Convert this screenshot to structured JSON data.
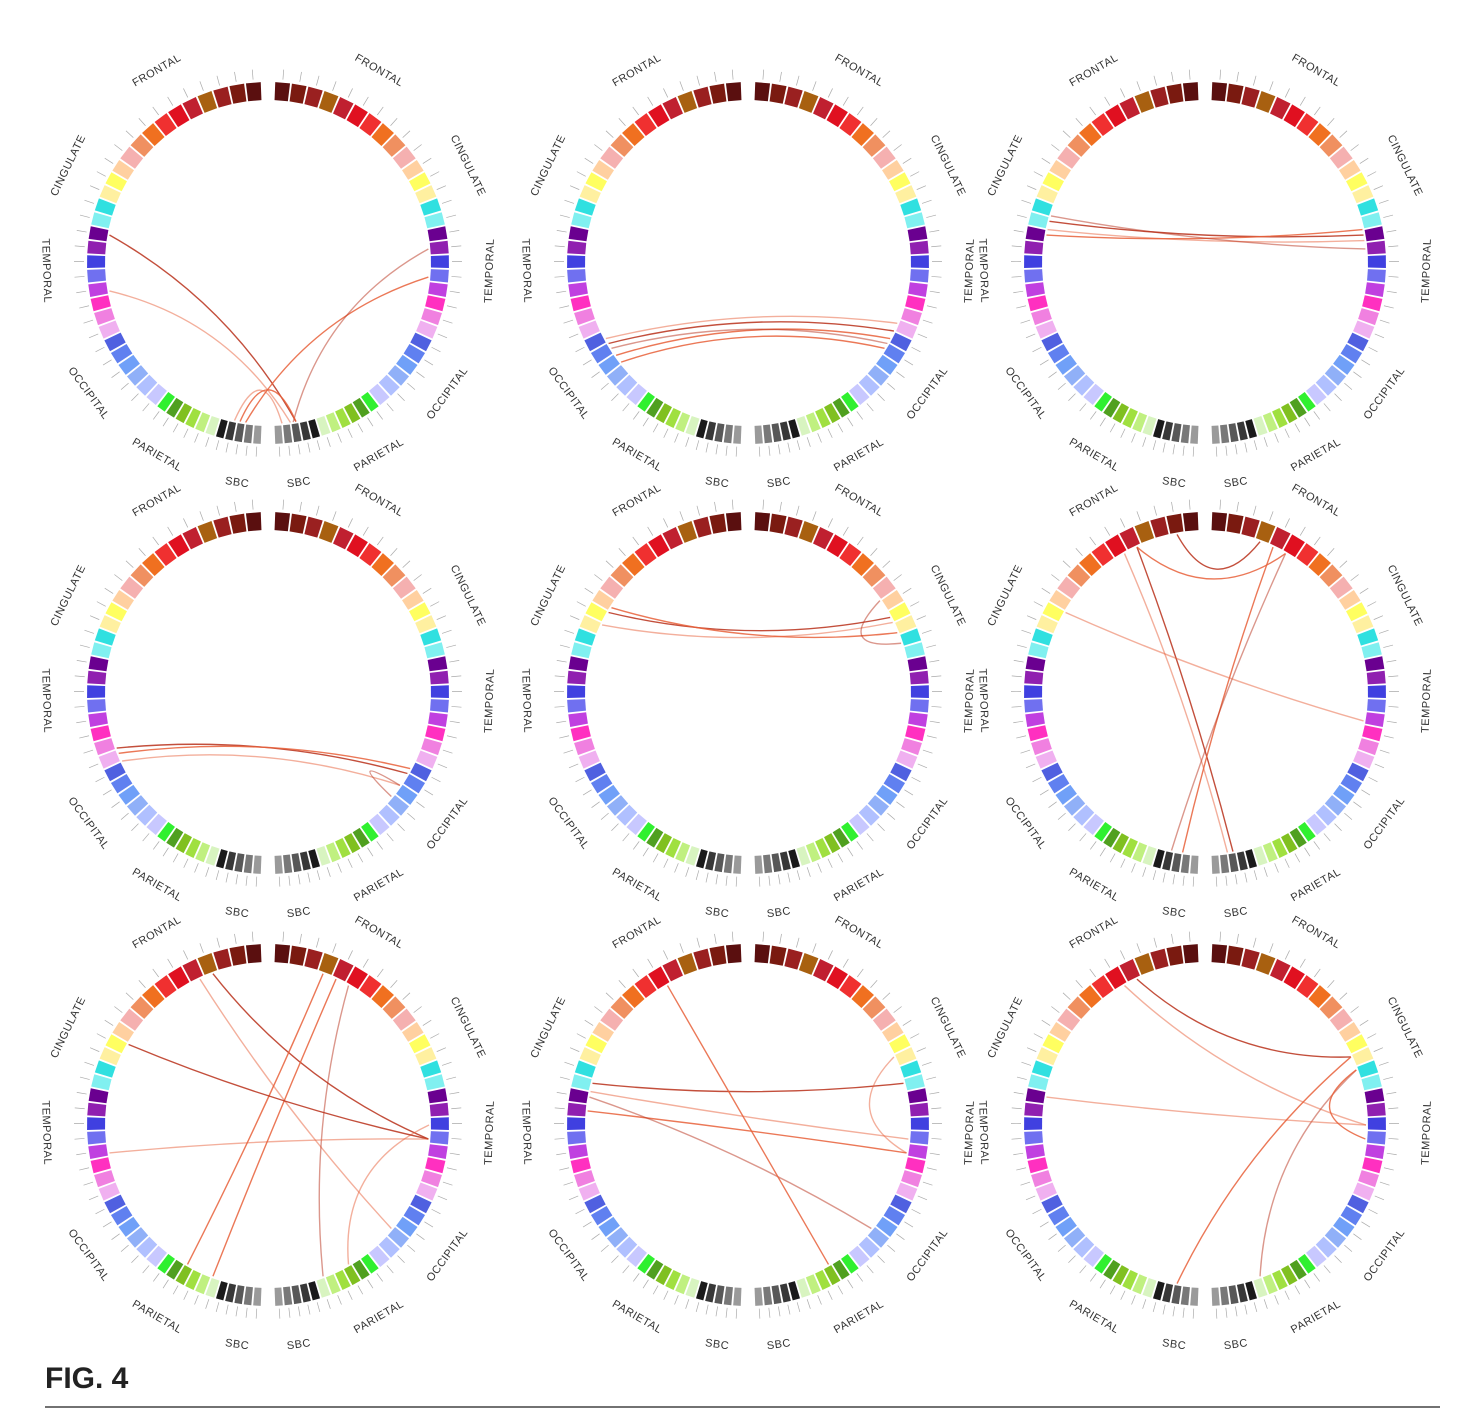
{
  "figure": {
    "caption": "FIG. 4",
    "panels": [
      {
        "left_labels": [
          "FRONTAL",
          "CINGULATE",
          "TEMPORAL",
          "OCCIPITAL",
          "PARIETAL",
          "SBC"
        ],
        "right_labels": [
          "FRONTAL",
          "CINGULATE",
          "TEMPORAL",
          "OCCIPITAL",
          "PARIETAL",
          "SBC"
        ]
      },
      {
        "left_labels": [
          "FRONTAL",
          "CINGULATE",
          "TEMPORAL",
          "OCCIPITAL",
          "PARIETAL",
          "SBC"
        ],
        "right_labels": [
          "FRONTAL",
          "CINGULATE",
          "TEMPORAL",
          "OCCIPITAL",
          "PARIETAL",
          "SBC"
        ]
      },
      {
        "left_labels": [
          "FRONTAL",
          "CINGULATE",
          "TEMPORAL",
          "OCCIPITAL",
          "PARIETAL",
          "SBC"
        ],
        "right_labels": [
          "FRONTAL",
          "CINGULATE",
          "TEMPORAL",
          "OCCIPITAL",
          "PARIETAL",
          "SBC"
        ]
      },
      {
        "left_labels": [
          "FRONTAL",
          "CINGULATE",
          "TEMPORAL",
          "OCCIPITAL",
          "PARIETAL",
          "SBC"
        ],
        "right_labels": [
          "FRONTAL",
          "CINGULATE",
          "TEMPORAL",
          "OCCIPITAL",
          "PARIETAL",
          "SBC"
        ]
      },
      {
        "left_labels": [
          "FRONTAL",
          "CINGULATE",
          "TEMPORAL",
          "OCCIPITAL",
          "PARIETAL",
          "SBC"
        ],
        "right_labels": [
          "FRONTAL",
          "CINGULATE",
          "TEMPORAL",
          "OCCIPITAL",
          "PARIETAL",
          "SBC"
        ]
      },
      {
        "left_labels": [
          "FRONTAL",
          "CINGULATE",
          "TEMPORAL",
          "OCCIPITAL",
          "PARIETAL",
          "SBC"
        ],
        "right_labels": [
          "FRONTAL",
          "CINGULATE",
          "TEMPORAL",
          "OCCIPITAL",
          "PARIETAL",
          "SBC"
        ]
      },
      {
        "left_labels": [
          "FRONTAL",
          "CINGULATE",
          "TEMPORAL",
          "OCCIPITAL",
          "PARIETAL",
          "SBC"
        ],
        "right_labels": [
          "FRONTAL",
          "CINGULATE",
          "TEMPORAL",
          "OCCIPITAL",
          "PARIETAL",
          "SBC"
        ]
      },
      {
        "left_labels": [
          "FRONTAL",
          "CINGULATE",
          "TEMPORAL",
          "OCCIPITAL",
          "PARIETAL",
          "SBC"
        ],
        "right_labels": [
          "FRONTAL",
          "CINGULATE",
          "TEMPORAL",
          "OCCIPITAL",
          "PARIETAL",
          "SBC"
        ]
      },
      {
        "left_labels": [
          "FRONTAL",
          "CINGULATE",
          "TEMPORAL",
          "OCCIPITAL",
          "PARIETAL",
          "SBC"
        ],
        "right_labels": [
          "FRONTAL",
          "CINGULATE",
          "TEMPORAL",
          "OCCIPITAL",
          "PARIETAL",
          "SBC"
        ]
      }
    ]
  }
}
